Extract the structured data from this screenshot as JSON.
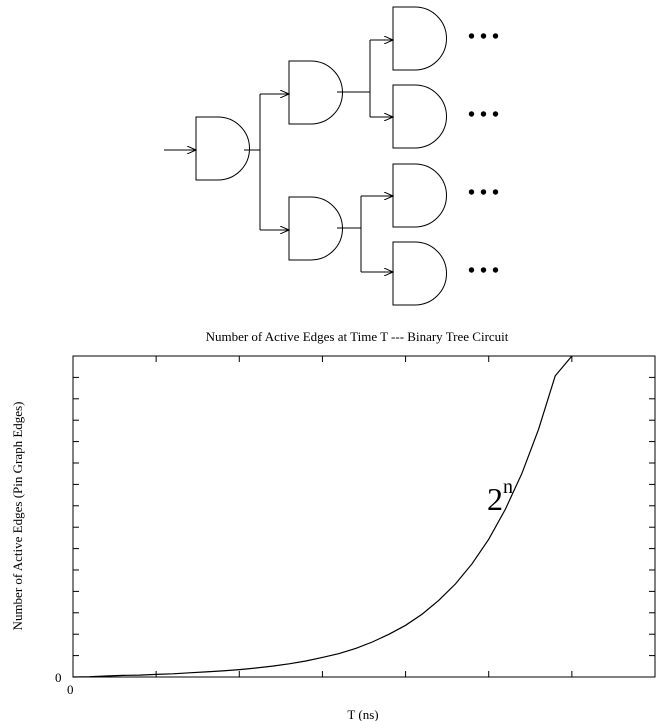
{
  "diagram": {
    "continuation_marker": "• • •"
  },
  "chart_data": {
    "type": "line",
    "title": "Number of Active Edges at Time T --- Binary Tree Circuit",
    "xlabel": "T (ns)",
    "ylabel": "Number of Active Edges (Pin Graph Edges)",
    "x_tick_label": "0",
    "y_tick_label": "0",
    "annotation": {
      "base": "2",
      "exponent": "n"
    },
    "series": [
      {
        "x": [
          0,
          1,
          2,
          3,
          4,
          5,
          6,
          7,
          8,
          9,
          10,
          11,
          12,
          13,
          14,
          15,
          16,
          17,
          18,
          19,
          20,
          21,
          22,
          23,
          24,
          25,
          26,
          27,
          28,
          29,
          30
        ],
        "y": [
          0,
          0.1,
          0.3,
          0.5,
          0.6,
          0.8,
          1.0,
          1.3,
          1.6,
          1.9,
          2.3,
          2.8,
          3.4,
          4.1,
          5.0,
          6.1,
          7.3,
          8.9,
          10.9,
          13.3,
          16.1,
          19.6,
          23.9,
          29.0,
          35.3,
          42.9,
          52.2,
          63.5,
          77.2,
          93.8,
          100
        ]
      }
    ],
    "xlim": [
      0,
      35
    ],
    "ylim": [
      0,
      100
    ],
    "x_minor_ticks": 7,
    "y_minor_ticks": 15,
    "grid": false
  }
}
